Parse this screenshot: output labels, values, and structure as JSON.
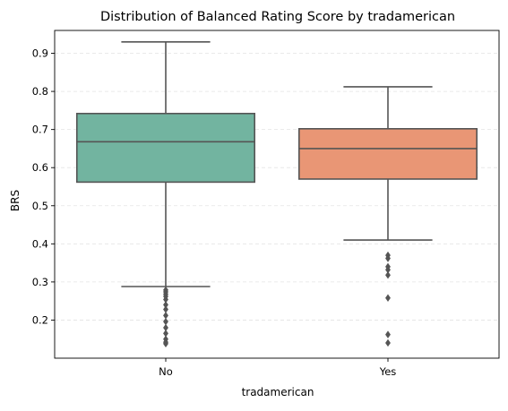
{
  "chart_data": {
    "type": "box",
    "title": "Distribution of Balanced Rating Score by tradamerican",
    "xlabel": "tradamerican",
    "ylabel": "BRS",
    "categories": [
      "No",
      "Yes"
    ],
    "ylim": [
      0.1,
      0.96
    ],
    "yticks": [
      0.2,
      0.3,
      0.4,
      0.5,
      0.6,
      0.7,
      0.8,
      0.9
    ],
    "ytick_labels": [
      "0.2",
      "0.3",
      "0.4",
      "0.5",
      "0.6",
      "0.7",
      "0.8",
      "0.9"
    ],
    "grid": "y-dashed",
    "boxes": [
      {
        "category": "No",
        "color": "#72b4a0",
        "whisker_low": 0.288,
        "q1": 0.562,
        "median": 0.668,
        "q3": 0.742,
        "whisker_high": 0.93,
        "outliers": [
          0.279,
          0.274,
          0.268,
          0.262,
          0.254,
          0.24,
          0.228,
          0.212,
          0.196,
          0.18,
          0.165,
          0.15,
          0.142,
          0.138
        ]
      },
      {
        "category": "Yes",
        "color": "#e99675",
        "whisker_low": 0.41,
        "q1": 0.57,
        "median": 0.65,
        "q3": 0.702,
        "whisker_high": 0.812,
        "outliers": [
          0.37,
          0.362,
          0.34,
          0.332,
          0.318,
          0.258,
          0.162,
          0.14
        ]
      }
    ]
  }
}
